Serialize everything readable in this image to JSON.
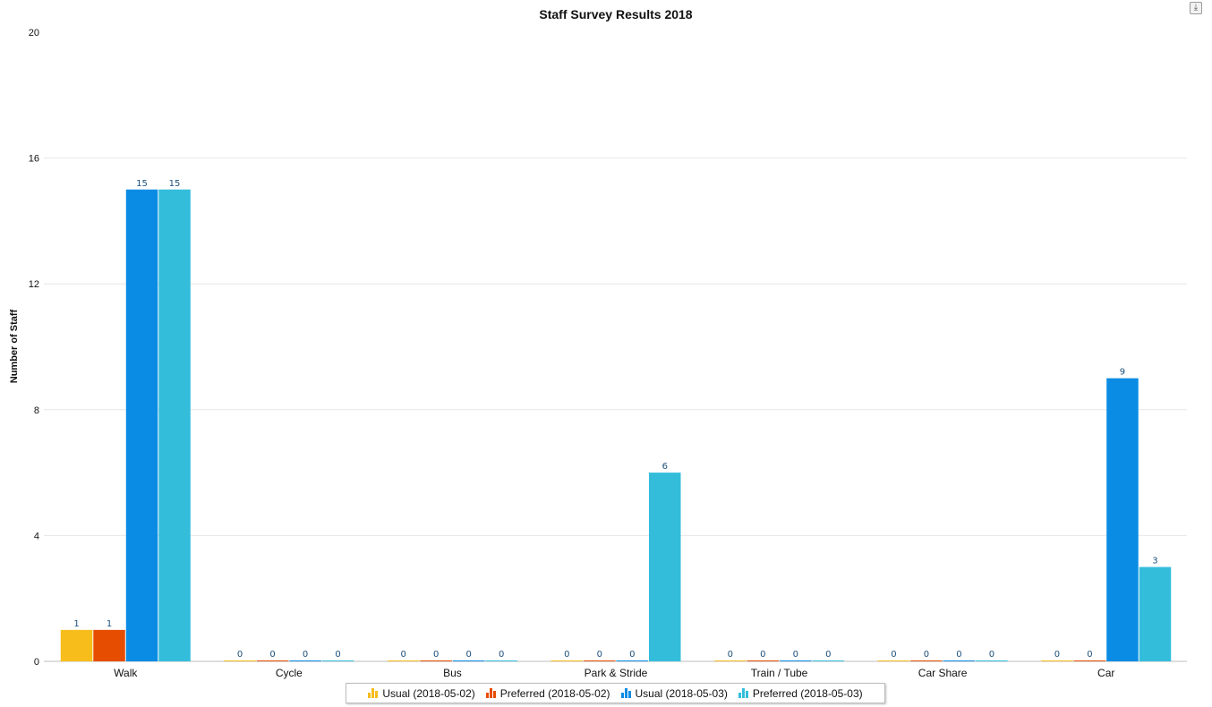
{
  "chart_data": {
    "type": "bar",
    "title": "Staff Survey Results 2018",
    "xlabel": "",
    "ylabel": "Number of Staff",
    "ylim": [
      0,
      20
    ],
    "yticks": [
      0,
      4,
      8,
      12,
      16,
      20
    ],
    "grid": true,
    "legend_position": "bottom",
    "categories": [
      "Walk",
      "Cycle",
      "Bus",
      "Park & Stride",
      "Train / Tube",
      "Car Share",
      "Car"
    ],
    "series": [
      {
        "name": "Usual (2018-05-02)",
        "color": "#f6bd1b",
        "values": [
          1,
          0,
          0,
          0,
          0,
          0,
          0
        ]
      },
      {
        "name": "Preferred (2018-05-02)",
        "color": "#e64d00",
        "values": [
          1,
          0,
          0,
          0,
          0,
          0,
          0
        ]
      },
      {
        "name": "Usual (2018-05-03)",
        "color": "#0a8ce4",
        "values": [
          15,
          0,
          0,
          0,
          0,
          0,
          9
        ]
      },
      {
        "name": "Preferred (2018-05-03)",
        "color": "#33bddb",
        "values": [
          15,
          0,
          0,
          6,
          0,
          0,
          3
        ]
      }
    ]
  },
  "toolbar": {
    "download_icon": "download-icon",
    "download_glyph": "⤓"
  }
}
